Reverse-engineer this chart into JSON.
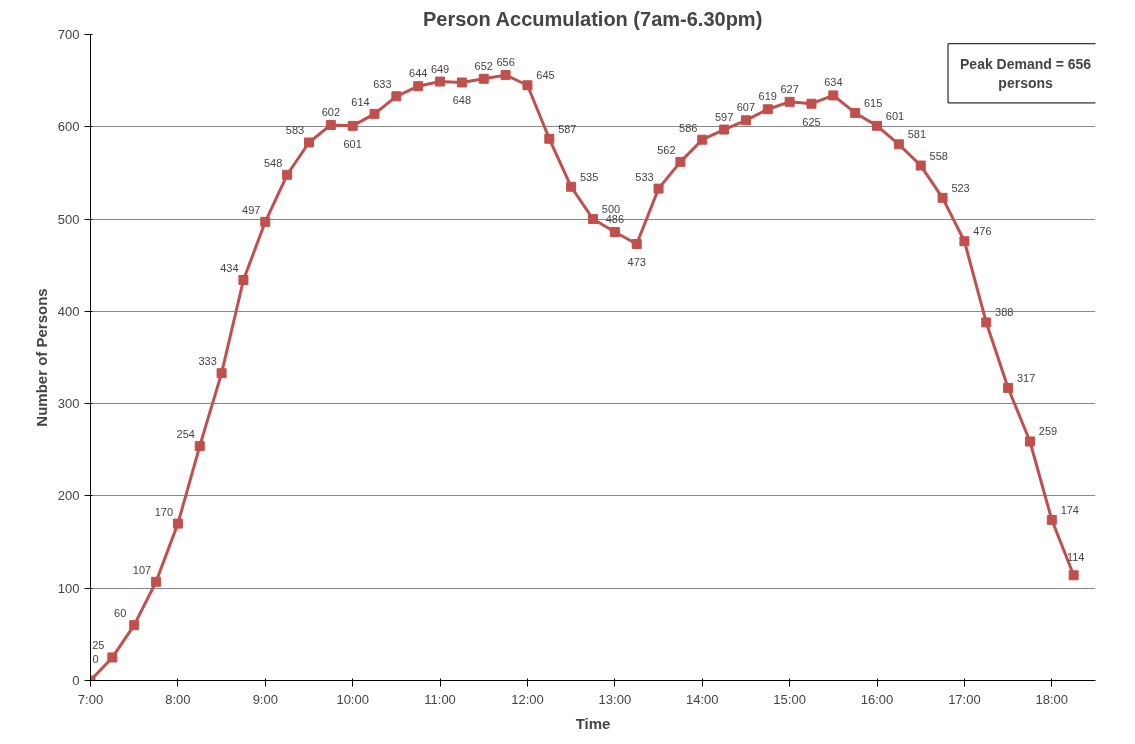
{
  "chart_data": {
    "type": "line",
    "title": "Person Accumulation (7am-6.30pm)",
    "xlabel": "Time",
    "ylabel": "Number of Persons",
    "x": [
      7,
      7.25,
      7.5,
      7.75,
      8,
      8.25,
      8.5,
      8.75,
      9,
      9.25,
      9.5,
      9.75,
      10,
      10.25,
      10.5,
      10.75,
      11,
      11.25,
      11.5,
      11.75,
      12,
      12.25,
      12.5,
      12.75,
      13,
      13.25,
      13.5,
      13.75,
      14,
      14.25,
      14.5,
      14.75,
      15,
      15.25,
      15.5,
      15.75,
      16,
      16.25,
      16.5,
      16.75,
      17,
      17.25,
      17.5,
      17.75,
      18,
      18.25
    ],
    "series": [
      {
        "color": "#c0504d",
        "values": [
          0,
          25,
          60,
          107,
          170,
          254,
          333,
          434,
          497,
          548,
          583,
          602,
          601,
          614,
          633,
          644,
          649,
          648,
          652,
          656,
          645,
          587,
          535,
          500,
          486,
          473,
          533,
          562,
          586,
          597,
          607,
          619,
          627,
          625,
          634,
          615,
          601,
          581,
          558,
          523,
          476,
          388,
          317,
          259,
          174,
          114
        ]
      }
    ],
    "xlim": [
      7,
      18.5
    ],
    "xticks": [
      {
        "value": 7,
        "label": "7:00"
      },
      {
        "value": 8,
        "label": "8:00"
      },
      {
        "value": 9,
        "label": "9:00"
      },
      {
        "value": 10,
        "label": "10:00"
      },
      {
        "value": 11,
        "label": "11:00"
      },
      {
        "value": 12,
        "label": "12:00"
      },
      {
        "value": 13,
        "label": "13:00"
      },
      {
        "value": 14,
        "label": "14:00"
      },
      {
        "value": 15,
        "label": "15:00"
      },
      {
        "value": 16,
        "label": "16:00"
      },
      {
        "value": 17,
        "label": "17:00"
      },
      {
        "value": 18,
        "label": "18:00"
      }
    ],
    "ylim": [
      0,
      700
    ],
    "yticks": [
      0,
      100,
      200,
      300,
      400,
      500,
      600,
      700
    ],
    "grid": "y",
    "marker": "square",
    "line_style": "solid",
    "data_labels": true,
    "annotations": [
      "Peak Demand = 656 persons"
    ]
  }
}
